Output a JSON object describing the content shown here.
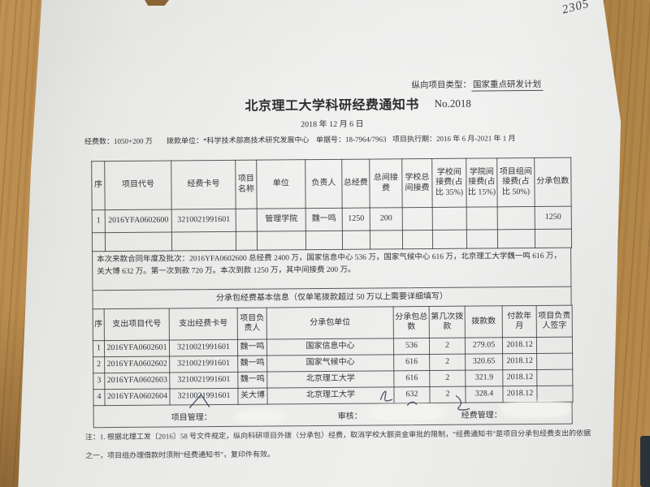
{
  "page": {
    "corner_note": "2305"
  },
  "colors": {
    "paper": "#eaebe7",
    "wood": "#b5874b",
    "ink": "#313337"
  },
  "doc": {
    "project_type_label": "纵向项目类型：",
    "project_type_value": "国家重点研发计划",
    "title": "北京理工大学科研经费通知书",
    "doc_no": "No.2018",
    "date": "2018 年 12 月 6 日",
    "meta": {
      "funds_label": "经费数：",
      "funds_value": "1050+200 万",
      "grantor_label": "拨款单位：",
      "grantor_value": "*科学技术部高技术研究发展中心",
      "receipt_label": "单据号：",
      "receipt_value": "18-7964/7963",
      "period_label": "项目执行期：",
      "period_value": "2016 年 6 月-2021 年 1 月"
    },
    "table1": {
      "headers": [
        "序",
        "项目代号",
        "经费卡号",
        "项目名称",
        "单位",
        "负责人",
        "总经费",
        "总间接费",
        "学校总间接费",
        "学校间接费(占比 35%)",
        "学院间接费(占比 15%)",
        "项目组间接费(占比 50%)",
        "分承包数"
      ],
      "rows": [
        [
          "1",
          "2016YFA0602600",
          "3210021991601",
          "",
          "管理学院",
          "魏一鸣",
          "1250",
          "200",
          "",
          "",
          "",
          "",
          "1250"
        ],
        [
          "",
          "",
          "",
          "",
          "",
          "",
          "",
          "",
          "",
          "",
          "",
          "",
          ""
        ]
      ]
    },
    "remark": "本次来款合同年度及批次：2016YFA0602600 总经费 2400 万，国家信息中心 536 万，国家气候中心 616 万，北京理工大学魏一鸣 616 万，关大博 632 万。第一次到款 720 万。本次到款 1250 万，其中间接费 200 万。",
    "section2_title": "分承包经费基本信息（仅单笔拨款超过 50 万以上需要详细填写）",
    "table2": {
      "headers": [
        "序",
        "支出项目代号",
        "支出经费卡号",
        "项目负责人",
        "分承包单位",
        "分承包总数",
        "第几次拨款",
        "拨款数",
        "付款年月",
        "项目负责人签字"
      ],
      "rows": [
        [
          "1",
          "2016YFA0602601",
          "3210021991601",
          "魏一鸣",
          "国家信息中心",
          "536",
          "2",
          "279.05",
          "2018.12",
          ""
        ],
        [
          "2",
          "2016YFA0602602",
          "3210021991601",
          "魏一鸣",
          "国家气候中心",
          "616",
          "2",
          "320.65",
          "2018.12",
          ""
        ],
        [
          "3",
          "2016YFA0602603",
          "3210021991601",
          "魏一鸣",
          "北京理工大学",
          "616",
          "2",
          "321.9",
          "2018.12",
          ""
        ],
        [
          "4",
          "2016YFA0602604",
          "3210021991601",
          "关大博",
          "北京理工大学",
          "632",
          "2",
          "328.4",
          "2018.12",
          ""
        ]
      ]
    },
    "footer": {
      "pm_label": "项目管理：",
      "audit_label": "审核：",
      "fm_label": "经费管理："
    },
    "note_line1": "注：1. 根据北理工发〔2016〕58 号文件规定，纵向科研项目外拨（分承包）经费，取消学校大额资金审批的限制，“经费通知书”是项目分承包经费支出的依据",
    "note_line2": "之一，项目组办理借款时须附“经费通知书”，复印件有效。"
  }
}
